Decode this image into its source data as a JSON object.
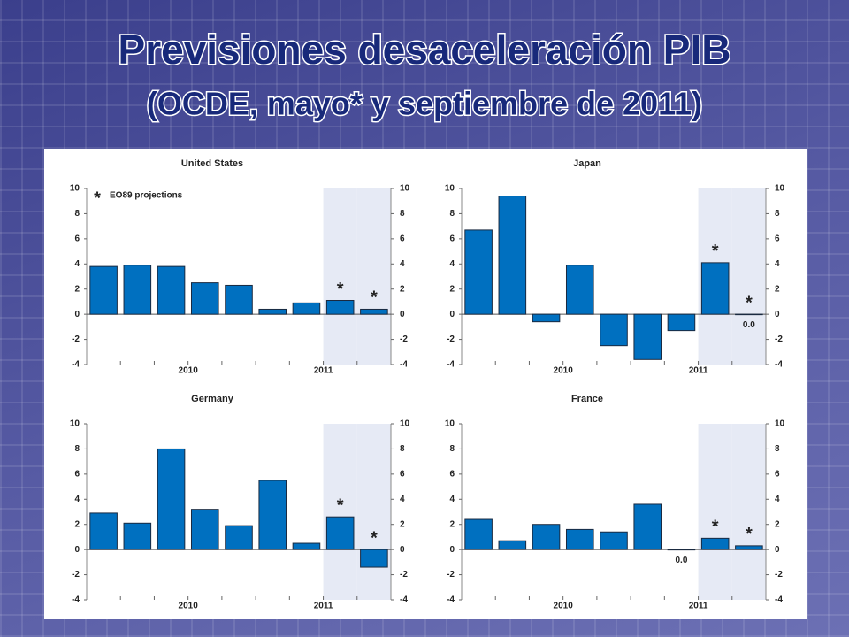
{
  "header": {
    "title": "Previsiones desaceleración PIB",
    "subtitle": "(OCDE, mayo* y septiembre de 2011)"
  },
  "chart_data": [
    {
      "type": "bar",
      "title": "United States",
      "categories": [
        null,
        null,
        "2010",
        null,
        null,
        null,
        "2011",
        null,
        null
      ],
      "values": [
        3.8,
        3.9,
        3.8,
        2.5,
        2.3,
        0.4,
        0.9,
        1.1,
        0.4
      ],
      "value_labels": [
        null,
        null,
        null,
        null,
        null,
        null,
        null,
        null,
        null
      ],
      "color": "#0070c0",
      "ylim": [
        -4,
        10
      ],
      "yticks": [
        -4,
        -2,
        0,
        2,
        4,
        6,
        8,
        10
      ],
      "y2lim": [
        -4,
        10
      ],
      "y2ticks": [
        -4,
        -2,
        0,
        2,
        4,
        6,
        8,
        10
      ],
      "shaded": [
        7,
        8
      ],
      "marker": "*",
      "legend": "EO89 projections"
    },
    {
      "type": "bar",
      "title": "Japan",
      "categories": [
        null,
        null,
        "2010",
        null,
        null,
        null,
        "2011",
        null,
        null
      ],
      "values": [
        6.7,
        9.4,
        -0.6,
        3.9,
        -2.5,
        -3.6,
        -1.3,
        4.1,
        0.0
      ],
      "value_labels": [
        null,
        null,
        null,
        null,
        null,
        null,
        null,
        null,
        "0.0"
      ],
      "color": "#0070c0",
      "ylim": [
        -4,
        10
      ],
      "yticks": [
        -4,
        -2,
        0,
        2,
        4,
        6,
        8,
        10
      ],
      "y2lim": [
        -4,
        10
      ],
      "y2ticks": [
        -4,
        -2,
        0,
        2,
        4,
        6,
        8,
        10
      ],
      "shaded": [
        7,
        8
      ],
      "marker": "*"
    },
    {
      "type": "bar",
      "title": "Germany",
      "categories": [
        null,
        null,
        "2010",
        null,
        null,
        null,
        "2011",
        null,
        null
      ],
      "values": [
        2.9,
        2.1,
        8.0,
        3.2,
        1.9,
        5.5,
        0.5,
        2.6,
        -1.4
      ],
      "value_labels": [
        null,
        null,
        null,
        null,
        null,
        null,
        null,
        null,
        null
      ],
      "color": "#0070c0",
      "ylim": [
        -4,
        10
      ],
      "yticks": [
        -4,
        -2,
        0,
        2,
        4,
        6,
        8,
        10
      ],
      "y2lim": [
        -4,
        10
      ],
      "y2ticks": [
        -4,
        -2,
        0,
        2,
        4,
        6,
        8,
        10
      ],
      "shaded": [
        7,
        8
      ],
      "marker": "*"
    },
    {
      "type": "bar",
      "title": "France",
      "categories": [
        null,
        null,
        "2010",
        null,
        null,
        null,
        "2011",
        null,
        null
      ],
      "values": [
        2.4,
        0.7,
        2.0,
        1.6,
        1.4,
        3.6,
        0.0,
        0.9,
        0.3
      ],
      "value_labels": [
        null,
        null,
        null,
        null,
        null,
        null,
        "0.0",
        null,
        null
      ],
      "color": "#0070c0",
      "ylim": [
        -4,
        10
      ],
      "yticks": [
        -4,
        -2,
        0,
        2,
        4,
        6,
        8,
        10
      ],
      "y2lim": [
        -4,
        10
      ],
      "y2ticks": [
        -4,
        -2,
        0,
        2,
        4,
        6,
        8,
        10
      ],
      "shaded": [
        7,
        8
      ],
      "marker": "*"
    }
  ]
}
